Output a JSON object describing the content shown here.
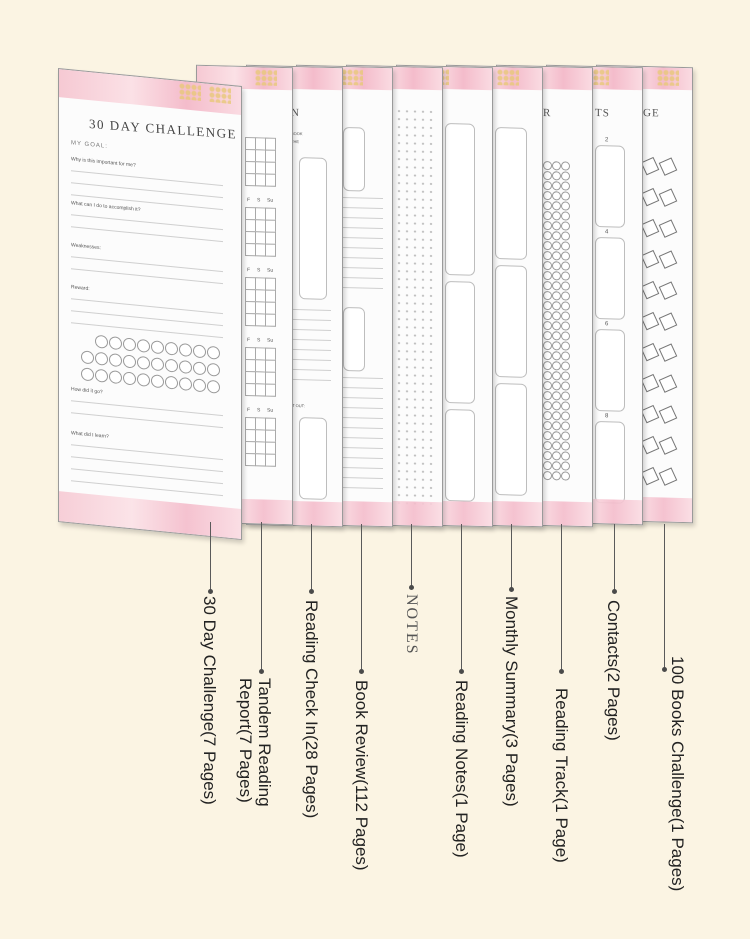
{
  "front_page": {
    "title": "30 DAY CHALLENGE",
    "goal_label": "MY GOAL:",
    "prompts": [
      "Why is this important for me?",
      "What can I do to accomplish it?",
      "Weaknesses:",
      "Reward:",
      "How did it go?",
      "What did I learn?"
    ]
  },
  "peek_texts": {
    "checkin_header": "N",
    "checkin_word1": "BOOK",
    "checkin_word2": "THE",
    "checkin_word3": "IT OUT:",
    "weekdays": [
      "F",
      "S",
      "Su"
    ],
    "track_header": "R",
    "contacts_header": "TS",
    "contacts_numbers": [
      "2",
      "4",
      "6",
      "8"
    ],
    "challenge_header": "GE"
  },
  "labels": [
    {
      "id": "30-day-challenge",
      "text": "30 Day Challenge(7 Pages)"
    },
    {
      "id": "tandem-reading-report",
      "line1": "Tandem Reading",
      "line2": "Report(7 Pages)"
    },
    {
      "id": "reading-check-in",
      "text": "Reading Check In(28 Pages)"
    },
    {
      "id": "book-review",
      "text": "Book Review(112 Pages)"
    },
    {
      "id": "notes",
      "text": "NOTES"
    },
    {
      "id": "reading-notes",
      "text": "Reading Notes(1 Page)"
    },
    {
      "id": "monthly-summary",
      "text": "Monthly Summary(3 Pages)"
    },
    {
      "id": "reading-track",
      "text": "Reading Track(1 Page)"
    },
    {
      "id": "contacts",
      "text": "Contacts(2 Pages)"
    },
    {
      "id": "100-books-challenge",
      "text": "100 Books Challenge(1 Pages)"
    }
  ],
  "colors": {
    "background": "#fbf4e3",
    "page_band": "#f6c9d3",
    "leader": "#4a4a4a"
  }
}
